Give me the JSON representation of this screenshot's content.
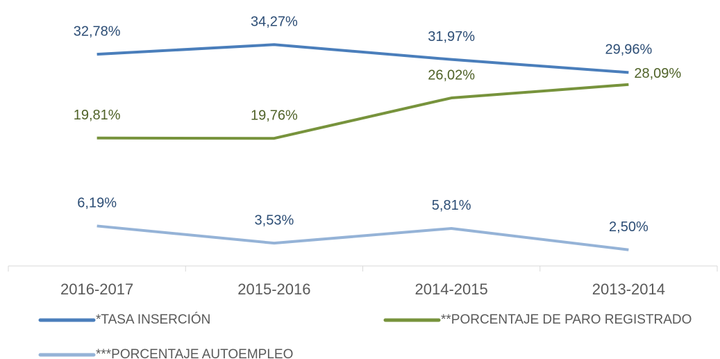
{
  "chart_data": {
    "type": "line",
    "categories": [
      "2016-2017",
      "2015-2016",
      "2014-2015",
      "2013-2014"
    ],
    "series": [
      {
        "name": "*TASA INSERCIÓN",
        "color": "#4a7ebb",
        "label_color": "#2c4d75",
        "values": [
          32.78,
          34.27,
          31.97,
          29.96
        ],
        "value_labels": [
          "32,78%",
          "34,27%",
          "31,97%",
          "29,96%"
        ]
      },
      {
        "name": "**PORCENTAJE DE PARO REGISTRADO",
        "color": "#77933c",
        "label_color": "#4f6228",
        "values": [
          19.81,
          19.76,
          26.02,
          28.09
        ],
        "value_labels": [
          "19,81%",
          "19,76%",
          "26,02%",
          "28,09%"
        ]
      },
      {
        "name": "***PORCENTAJE AUTOEMPLEO",
        "color": "#95b3d7",
        "label_color": "#2c4d75",
        "values": [
          6.19,
          3.53,
          5.81,
          2.5
        ],
        "value_labels": [
          "6,19%",
          "3,53%",
          "5,81%",
          "2,50%"
        ]
      }
    ],
    "ylim": [
      0,
      40
    ]
  }
}
